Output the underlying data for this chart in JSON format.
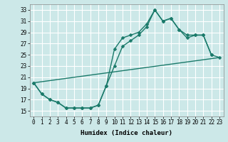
{
  "xlabel": "Humidex (Indice chaleur)",
  "bg_color": "#cce8e8",
  "grid_color": "#ffffff",
  "line_color": "#1a7a6a",
  "xlim": [
    -0.5,
    23.5
  ],
  "ylim": [
    14.0,
    34.0
  ],
  "xticks": [
    0,
    1,
    2,
    3,
    4,
    5,
    6,
    7,
    8,
    9,
    10,
    11,
    12,
    13,
    14,
    15,
    16,
    17,
    18,
    19,
    20,
    21,
    22,
    23
  ],
  "yticks": [
    15,
    17,
    19,
    21,
    23,
    25,
    27,
    29,
    31,
    33
  ],
  "line1_x": [
    0,
    1,
    2,
    3,
    4,
    5,
    6,
    7,
    8,
    9,
    10,
    11,
    12,
    13,
    14,
    15,
    16,
    17,
    18,
    19,
    20,
    21,
    22
  ],
  "line1_y": [
    20.0,
    18.0,
    17.0,
    16.5,
    15.5,
    15.5,
    15.5,
    15.5,
    16.0,
    19.5,
    26.0,
    28.0,
    28.5,
    29.0,
    30.5,
    33.0,
    31.0,
    31.5,
    29.5,
    28.5,
    28.5,
    28.5,
    25.0
  ],
  "line2_x": [
    0,
    1,
    2,
    3,
    4,
    5,
    6,
    7,
    8,
    9,
    10,
    11,
    12,
    13,
    14,
    15,
    16,
    17,
    18,
    19,
    20,
    21,
    22,
    23
  ],
  "line2_y": [
    20.0,
    18.0,
    17.0,
    16.5,
    15.5,
    15.5,
    15.5,
    15.5,
    16.0,
    19.5,
    23.0,
    26.5,
    27.5,
    28.5,
    30.0,
    33.0,
    31.0,
    31.5,
    29.5,
    28.0,
    28.5,
    28.5,
    25.0,
    24.5
  ],
  "line3_x": [
    0,
    23
  ],
  "line3_y": [
    20.0,
    24.5
  ],
  "markersize": 2.5,
  "linewidth": 1.0,
  "tick_fontsize": 5.5,
  "xlabel_fontsize": 6.5
}
